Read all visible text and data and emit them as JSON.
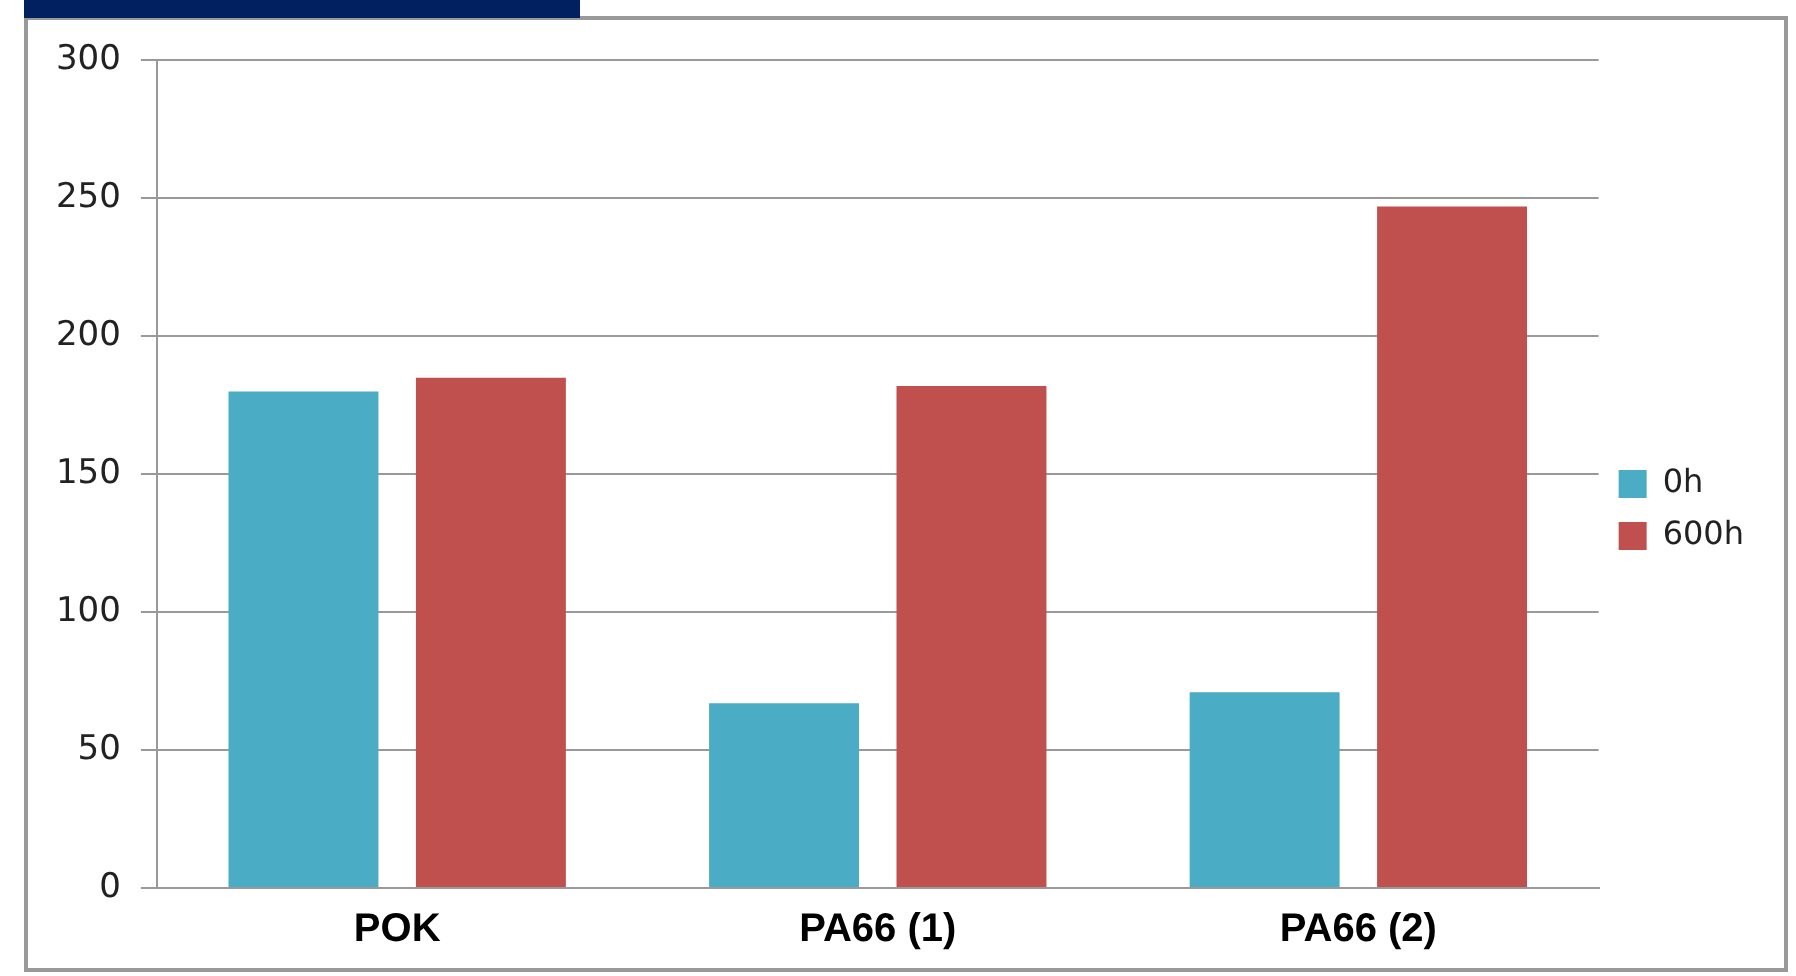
{
  "chart_data": {
    "type": "bar",
    "categories": [
      "POK",
      "PA66 (1)",
      "PA66 (2)"
    ],
    "series": [
      {
        "name": "0h",
        "color": "#4bacc6",
        "values": [
          180,
          67,
          71
        ]
      },
      {
        "name": "600h",
        "color": "#c0504d",
        "values": [
          185,
          182,
          247
        ]
      }
    ],
    "ylim": [
      0,
      300
    ],
    "yticks": [
      0,
      50,
      100,
      150,
      200,
      250,
      300
    ],
    "grid": "y",
    "legend": "right"
  }
}
